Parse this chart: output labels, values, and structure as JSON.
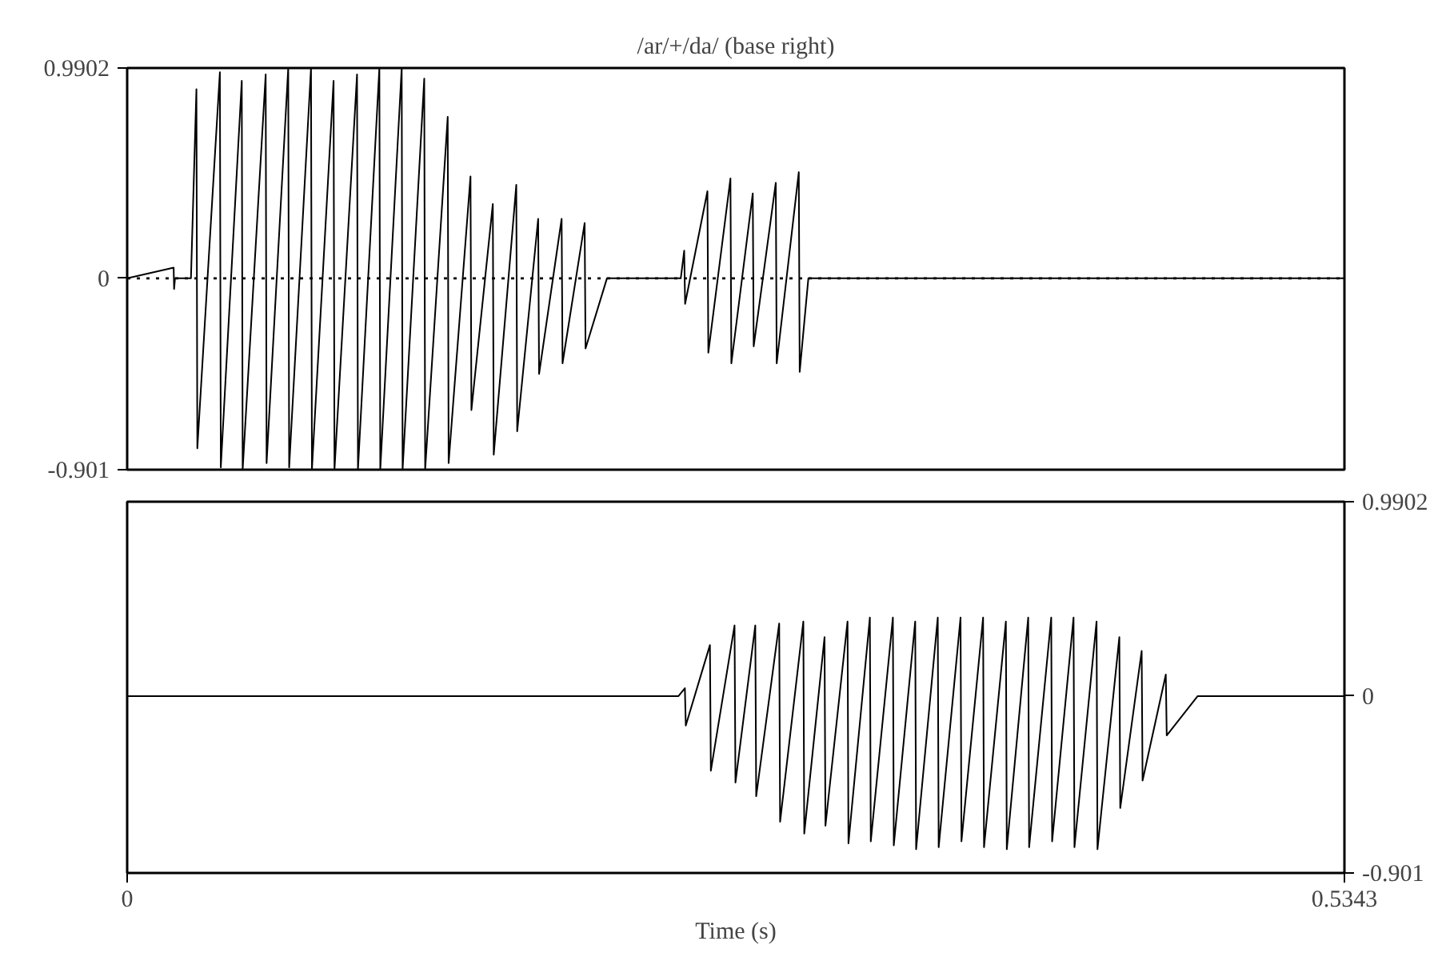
{
  "chart_data": [
    {
      "type": "line",
      "title": "/ar/+/da/ (base right)",
      "xlim": [
        0,
        0.5343
      ],
      "ylim": [
        -0.901,
        0.9902
      ],
      "yticks": [
        0.9902,
        0,
        -0.901
      ],
      "tick_labels": "y",
      "grid": false,
      "marker": "none",
      "line_style": "solid",
      "ref_lines": [
        {
          "axis": "y",
          "value": 0,
          "line_style": "dotted",
          "color": "#000000"
        }
      ],
      "series": [
        {
          "color": "#000000",
          "x": [
            0,
            0.0204,
            0.0206,
            0.021,
            0.028,
            0.0304,
            0.0308,
            0.0407,
            0.0411,
            0.0503,
            0.0507,
            0.0608,
            0.0612,
            0.0707,
            0.0711,
            0.0807,
            0.0811,
            0.0906,
            0.091,
            0.1009,
            0.1013,
            0.1107,
            0.1111,
            0.1205,
            0.1209,
            0.1304,
            0.1308,
            0.1407,
            0.1411,
            0.1507,
            0.1511,
            0.1605,
            0.1609,
            0.1708,
            0.1712,
            0.1804,
            0.1808,
            0.1907,
            0.1911,
            0.2008,
            0.2012,
            0.2106,
            0.243,
            0.2445,
            0.2449,
            0.2547,
            0.2551,
            0.2648,
            0.2652,
            0.2746,
            0.275,
            0.2847,
            0.2851,
            0.2948,
            0.2952,
            0.299,
            0.5343
          ],
          "values": [
            0,
            0.05,
            -0.05,
            0,
            0,
            0.89,
            -0.8,
            0.97,
            -0.89,
            0.93,
            -0.9,
            0.96,
            -0.87,
            0.99,
            -0.89,
            0.99,
            -0.9,
            0.93,
            -0.9,
            0.96,
            -0.9,
            0.99,
            -0.9,
            0.99,
            -0.9,
            0.94,
            -0.9,
            0.76,
            -0.87,
            0.48,
            -0.62,
            0.35,
            -0.83,
            0.44,
            -0.72,
            0.28,
            -0.45,
            0.28,
            -0.4,
            0.26,
            -0.33,
            0,
            0,
            0.13,
            -0.12,
            0.41,
            -0.35,
            0.47,
            -0.4,
            0.4,
            -0.32,
            0.45,
            -0.4,
            0.5,
            -0.44,
            0,
            0
          ]
        }
      ]
    },
    {
      "type": "line",
      "xlabel": "Time (s)",
      "xlim": [
        0,
        0.5343
      ],
      "xticks": [
        0,
        0.5343
      ],
      "y2lim": [
        -0.901,
        0.9902
      ],
      "y2ticks": [
        0.9902,
        0,
        -0.901
      ],
      "grid": false,
      "marker": "none",
      "line_style": "solid",
      "series": [
        {
          "color": "#000000",
          "axis": "y2",
          "x": [
            0,
            0.242,
            0.2448,
            0.2452,
            0.2558,
            0.2562,
            0.2666,
            0.267,
            0.2757,
            0.2761,
            0.2862,
            0.2866,
            0.2968,
            0.2972,
            0.3061,
            0.3065,
            0.3162,
            0.3166,
            0.326,
            0.3264,
            0.3361,
            0.3365,
            0.3459,
            0.3463,
            0.3558,
            0.3562,
            0.3658,
            0.3662,
            0.3757,
            0.3761,
            0.3857,
            0.3861,
            0.3955,
            0.3959,
            0.4056,
            0.406,
            0.4154,
            0.4158,
            0.4255,
            0.4259,
            0.4355,
            0.4359,
            0.4453,
            0.4457,
            0.4559,
            0.4563,
            0.4699,
            0.5343
          ],
          "values": [
            0,
            0,
            0.04,
            -0.15,
            0.26,
            -0.38,
            0.36,
            -0.44,
            0.36,
            -0.51,
            0.37,
            -0.64,
            0.38,
            -0.7,
            0.3,
            -0.66,
            0.38,
            -0.75,
            0.4,
            -0.74,
            0.4,
            -0.76,
            0.38,
            -0.78,
            0.4,
            -0.77,
            0.4,
            -0.74,
            0.4,
            -0.77,
            0.38,
            -0.78,
            0.4,
            -0.77,
            0.4,
            -0.74,
            0.4,
            -0.77,
            0.38,
            -0.78,
            0.3,
            -0.57,
            0.23,
            -0.43,
            0.11,
            -0.2,
            0,
            0
          ]
        }
      ]
    }
  ]
}
